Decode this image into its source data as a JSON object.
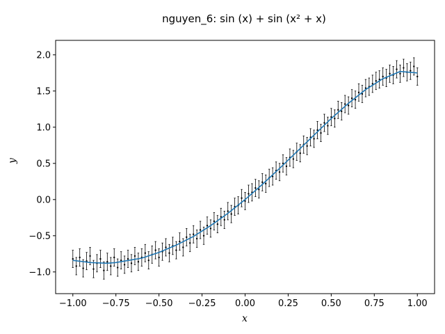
{
  "chart_data": {
    "type": "scatter",
    "title": "nguyen_6: sin (x) + sin (x² + x)",
    "xlabel": "x",
    "ylabel": "y",
    "xlim": [
      -1.1,
      1.1
    ],
    "ylim": [
      -1.3,
      2.2
    ],
    "xticks": [
      -1.0,
      -0.75,
      -0.5,
      -0.25,
      0.0,
      0.25,
      0.5,
      0.75,
      1.0
    ],
    "xtick_labels": [
      "−1.00",
      "−0.75",
      "−0.50",
      "−0.25",
      "0.00",
      "0.25",
      "0.50",
      "0.75",
      "1.00"
    ],
    "yticks": [
      -1.0,
      -0.5,
      0.0,
      0.5,
      1.0,
      1.5,
      2.0
    ],
    "ytick_labels": [
      "−1.0",
      "−0.5",
      "0.0",
      "0.5",
      "1.0",
      "1.5",
      "2.0"
    ],
    "grid": false,
    "colors": {
      "line": "#1f77b4",
      "points": "#000000"
    },
    "series": [
      {
        "kind": "errorbar-scatter",
        "x": [
          -1.0,
          -0.98,
          -0.96,
          -0.94,
          -0.92,
          -0.9,
          -0.88,
          -0.86,
          -0.84,
          -0.82,
          -0.8,
          -0.78,
          -0.76,
          -0.74,
          -0.72,
          -0.7,
          -0.68,
          -0.66,
          -0.64,
          -0.62,
          -0.6,
          -0.58,
          -0.56,
          -0.54,
          -0.52,
          -0.5,
          -0.48,
          -0.46,
          -0.44,
          -0.42,
          -0.4,
          -0.38,
          -0.36,
          -0.34,
          -0.32,
          -0.3,
          -0.28,
          -0.26,
          -0.24,
          -0.22,
          -0.2,
          -0.18,
          -0.16,
          -0.14,
          -0.12,
          -0.1,
          -0.08,
          -0.06,
          -0.04,
          -0.02,
          0.0,
          0.02,
          0.04,
          0.06,
          0.08,
          0.1,
          0.12,
          0.14,
          0.16,
          0.18,
          0.2,
          0.22,
          0.24,
          0.26,
          0.28,
          0.3,
          0.32,
          0.34,
          0.36,
          0.38,
          0.4,
          0.42,
          0.44,
          0.46,
          0.48,
          0.5,
          0.52,
          0.54,
          0.56,
          0.58,
          0.6,
          0.62,
          0.64,
          0.66,
          0.68,
          0.7,
          0.72,
          0.74,
          0.76,
          0.78,
          0.8,
          0.82,
          0.84,
          0.86,
          0.88,
          0.9,
          0.92,
          0.94,
          0.96,
          0.98,
          1.0
        ],
        "y": [
          -0.82,
          -0.92,
          -0.8,
          -0.95,
          -0.85,
          -0.78,
          -0.96,
          -0.88,
          -0.82,
          -0.98,
          -0.86,
          -0.92,
          -0.8,
          -0.94,
          -0.84,
          -0.9,
          -0.82,
          -0.88,
          -0.78,
          -0.86,
          -0.8,
          -0.74,
          -0.84,
          -0.76,
          -0.7,
          -0.8,
          -0.72,
          -0.66,
          -0.74,
          -0.64,
          -0.7,
          -0.58,
          -0.66,
          -0.52,
          -0.6,
          -0.48,
          -0.54,
          -0.42,
          -0.5,
          -0.36,
          -0.4,
          -0.3,
          -0.34,
          -0.24,
          -0.28,
          -0.16,
          -0.2,
          -0.1,
          -0.08,
          0.02,
          -0.02,
          0.08,
          0.1,
          0.16,
          0.14,
          0.24,
          0.22,
          0.3,
          0.32,
          0.4,
          0.38,
          0.5,
          0.46,
          0.58,
          0.56,
          0.66,
          0.64,
          0.76,
          0.74,
          0.86,
          0.84,
          0.96,
          0.92,
          1.06,
          1.02,
          1.14,
          1.12,
          1.24,
          1.22,
          1.32,
          1.3,
          1.4,
          1.38,
          1.48,
          1.46,
          1.54,
          1.56,
          1.6,
          1.64,
          1.66,
          1.7,
          1.68,
          1.74,
          1.72,
          1.8,
          1.74,
          1.82,
          1.76,
          1.78,
          1.84,
          1.7
        ],
        "error": 0.12
      },
      {
        "kind": "line",
        "x": [
          -1.0,
          -0.9,
          -0.8,
          -0.75,
          -0.7,
          -0.6,
          -0.5,
          -0.4,
          -0.3,
          -0.2,
          -0.1,
          0.0,
          0.1,
          0.2,
          0.3,
          0.4,
          0.5,
          0.6,
          0.7,
          0.8,
          0.9,
          1.0
        ],
        "y": [
          -0.84,
          -0.87,
          -0.88,
          -0.87,
          -0.85,
          -0.81,
          -0.73,
          -0.63,
          -0.51,
          -0.36,
          -0.19,
          0.0,
          0.21,
          0.43,
          0.66,
          0.89,
          1.12,
          1.33,
          1.52,
          1.67,
          1.77,
          1.75
        ]
      }
    ]
  }
}
